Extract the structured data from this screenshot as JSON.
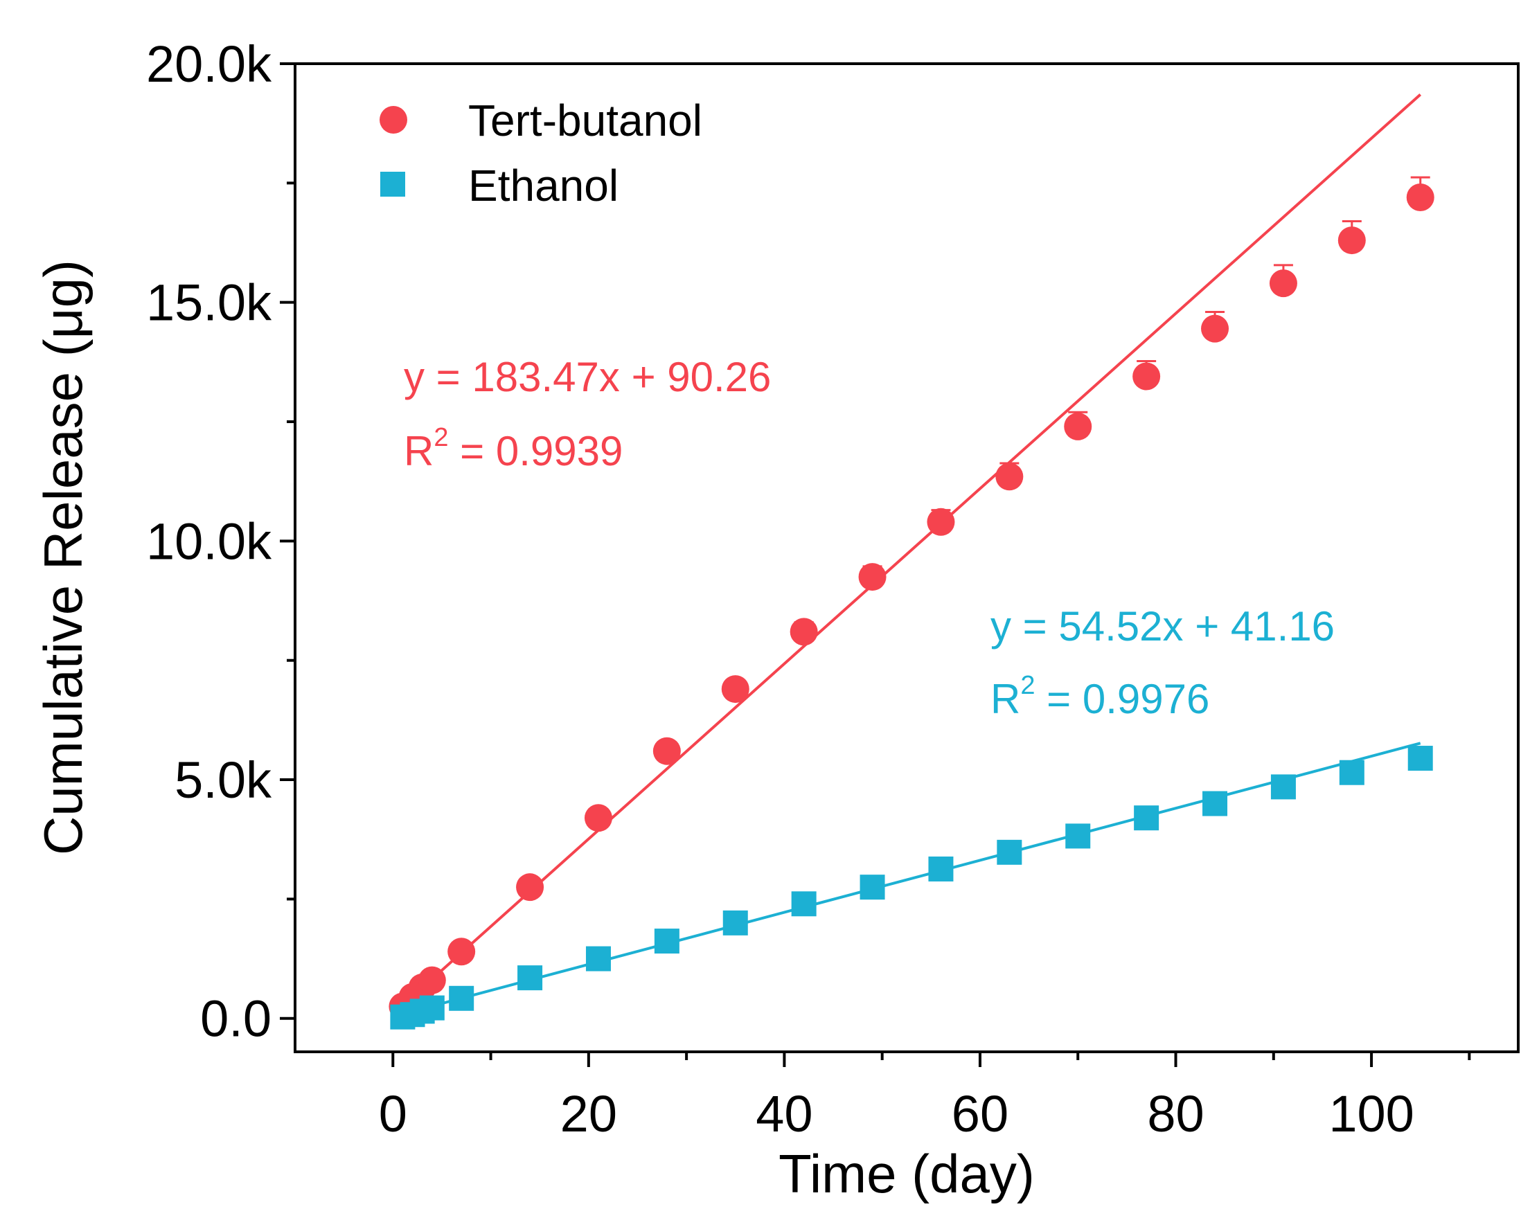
{
  "chart_data": {
    "type": "scatter",
    "xlabel": "Time (day)",
    "ylabel": "Cumulative Release (μg)",
    "xlim": [
      -10,
      115
    ],
    "ylim": [
      -700,
      20000
    ],
    "x_ticks": [
      0,
      20,
      40,
      60,
      80,
      100
    ],
    "x_tick_labels": [
      "0",
      "20",
      "40",
      "60",
      "80",
      "100"
    ],
    "y_ticks": [
      0,
      5000,
      10000,
      15000,
      20000
    ],
    "y_tick_labels": [
      "0.0",
      "5.0k",
      "10.0k",
      "15.0k",
      "20.0k"
    ],
    "legend_position": "top-left",
    "grid": false,
    "series": [
      {
        "name": "Tert-butanol",
        "marker": "circle",
        "color": "#f5434e",
        "x": [
          1,
          2,
          3,
          4,
          7,
          14,
          21,
          28,
          35,
          42,
          49,
          56,
          63,
          70,
          77,
          84,
          91,
          98,
          105
        ],
        "y": [
          250,
          450,
          650,
          800,
          1400,
          2750,
          4200,
          5600,
          6900,
          8100,
          9250,
          10400,
          11350,
          12400,
          13450,
          14450,
          15400,
          16300,
          17200
        ],
        "error": [
          60,
          60,
          60,
          60,
          80,
          100,
          120,
          150,
          180,
          200,
          220,
          250,
          280,
          300,
          320,
          350,
          380,
          400,
          420
        ],
        "fit": {
          "slope": 183.47,
          "intercept": 90.26,
          "x_range": [
            1,
            105
          ]
        },
        "equation": "y = 183.47x + 90.26",
        "r2_prefix": "R",
        "r2_sup": "2",
        "r2_value": " = 0.9939"
      },
      {
        "name": "Ethanol",
        "marker": "square",
        "color": "#1cb0d3",
        "x": [
          1,
          2,
          3,
          4,
          7,
          14,
          21,
          28,
          35,
          42,
          49,
          56,
          63,
          70,
          77,
          84,
          91,
          98,
          105
        ],
        "y": [
          30,
          80,
          150,
          220,
          420,
          850,
          1250,
          1620,
          2000,
          2400,
          2750,
          3130,
          3480,
          3820,
          4200,
          4500,
          4850,
          5150,
          5450
        ],
        "fit": {
          "slope": 54.52,
          "intercept": 41.16,
          "x_range": [
            1,
            105
          ]
        },
        "equation": "y = 54.52x + 41.16",
        "r2_prefix": "R",
        "r2_sup": "2",
        "r2_value": " = 0.9976"
      }
    ]
  }
}
